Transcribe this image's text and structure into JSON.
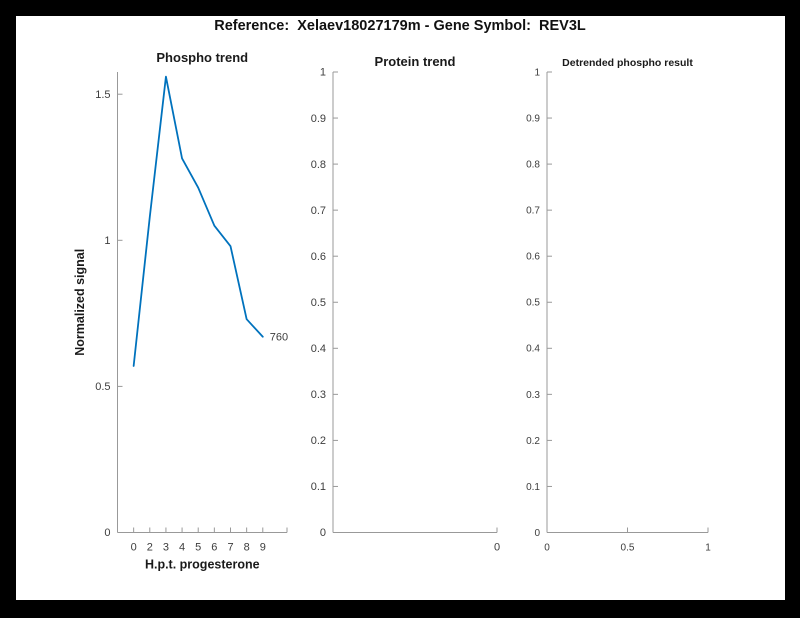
{
  "page_title": "Reference:  Xelaev18027179m - Gene Symbol:  REV3L",
  "colors": {
    "line": "#0072BD",
    "axis": "#999999",
    "tick_text": "#3d3d3d",
    "label_text": "#1a1a1a",
    "frame": "#000000",
    "canvas": "#ffffff"
  },
  "chart_data": [
    {
      "type": "line",
      "title": "Phospho trend",
      "xlabel": "H.p.t. progesterone",
      "ylabel": "Normalized signal",
      "categories": [
        "0",
        "2",
        "3",
        "4",
        "5",
        "6",
        "7",
        "8",
        "9"
      ],
      "x_positions": [
        1,
        2,
        3,
        4,
        5,
        6,
        7,
        8,
        9
      ],
      "values": [
        0.57,
        1.08,
        1.56,
        1.28,
        1.18,
        1.05,
        0.98,
        0.73,
        0.67
      ],
      "xlim": [
        0,
        10.5
      ],
      "ylim": [
        0,
        1.576
      ],
      "yticks": [
        {
          "label": "0",
          "v": 0
        },
        {
          "label": "0.5",
          "v": 0.5
        },
        {
          "label": "1",
          "v": 1
        },
        {
          "label": "1.5",
          "v": 1.5
        }
      ],
      "xticks": [
        {
          "label": "0",
          "t": 1
        },
        {
          "label": "2",
          "t": 2
        },
        {
          "label": "3",
          "t": 3
        },
        {
          "label": "4",
          "t": 4
        },
        {
          "label": "5",
          "t": 5
        },
        {
          "label": "6",
          "t": 6
        },
        {
          "label": "7",
          "t": 7
        },
        {
          "label": "8",
          "t": 8
        },
        {
          "label": "9",
          "t": 9
        },
        {
          "label": "",
          "t": 10.5
        }
      ],
      "annotation": {
        "text": "760",
        "attach": "last-point"
      },
      "grid": false,
      "legend": null
    },
    {
      "type": "line",
      "title": "Protein trend",
      "xlabel": "",
      "ylabel": "",
      "categories": [],
      "x_positions": [],
      "values": [],
      "xlim": [
        0,
        1
      ],
      "ylim": [
        0,
        1
      ],
      "yticks": [
        {
          "label": "0",
          "v": 0
        },
        {
          "label": "0.1",
          "v": 0.1
        },
        {
          "label": "0.2",
          "v": 0.2
        },
        {
          "label": "0.3",
          "v": 0.3
        },
        {
          "label": "0.4",
          "v": 0.4
        },
        {
          "label": "0.5",
          "v": 0.5
        },
        {
          "label": "0.6",
          "v": 0.6
        },
        {
          "label": "0.7",
          "v": 0.7
        },
        {
          "label": "0.8",
          "v": 0.8
        },
        {
          "label": "0.9",
          "v": 0.9
        },
        {
          "label": "1",
          "v": 1
        }
      ],
      "xticks": [
        {
          "label": "0",
          "t": 1
        }
      ],
      "annotation": null,
      "grid": false,
      "legend": null
    },
    {
      "type": "line",
      "title": "Detrended phospho result",
      "xlabel": "",
      "ylabel": "",
      "categories": [],
      "x_positions": [],
      "values": [],
      "xlim": [
        0,
        1
      ],
      "ylim": [
        0,
        1
      ],
      "yticks": [
        {
          "label": "0",
          "v": 0
        },
        {
          "label": "0.1",
          "v": 0.1
        },
        {
          "label": "0.2",
          "v": 0.2
        },
        {
          "label": "0.3",
          "v": 0.3
        },
        {
          "label": "0.4",
          "v": 0.4
        },
        {
          "label": "0.5",
          "v": 0.5
        },
        {
          "label": "0.6",
          "v": 0.6
        },
        {
          "label": "0.7",
          "v": 0.7
        },
        {
          "label": "0.8",
          "v": 0.8
        },
        {
          "label": "0.9",
          "v": 0.9
        },
        {
          "label": "1",
          "v": 1
        }
      ],
      "xticks": [
        {
          "label": "0",
          "t": 0
        },
        {
          "label": "0.5",
          "t": 0.5
        },
        {
          "label": "1",
          "t": 1
        }
      ],
      "annotation": null,
      "grid": false,
      "legend": null
    }
  ]
}
